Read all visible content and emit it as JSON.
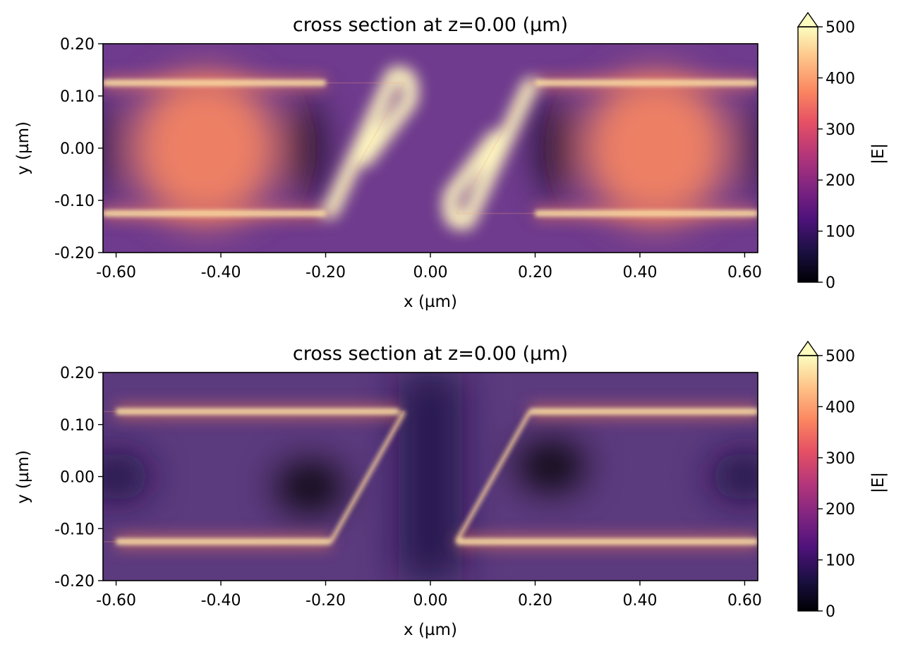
{
  "colormap": {
    "name": "magma",
    "stops": [
      "#000004",
      "#1c1044",
      "#4f127b",
      "#812581",
      "#b5367a",
      "#e55064",
      "#fb8761",
      "#fec287",
      "#fcfdbf"
    ]
  },
  "chart_data": [
    {
      "type": "heatmap",
      "title": "cross section at z=0.00 (µm)",
      "xlabel": "x (µm)",
      "ylabel": "y (µm)",
      "xlim": [
        -0.625,
        0.625
      ],
      "ylim": [
        -0.2,
        0.2
      ],
      "xticks": [
        -0.6,
        -0.4,
        -0.2,
        0.0,
        0.2,
        0.4,
        0.6
      ],
      "xtick_labels": [
        "-0.60",
        "-0.40",
        "-0.20",
        "0.00",
        "0.20",
        "0.40",
        "0.60"
      ],
      "yticks": [
        0.2,
        0.1,
        0.0,
        -0.1,
        -0.2
      ],
      "ytick_labels": [
        "0.20",
        "0.10",
        "0.00",
        "-0.10",
        "-0.20"
      ],
      "colorbar": {
        "label": "|E|",
        "range": [
          0,
          500
        ],
        "ticks": [
          0,
          100,
          200,
          300,
          400,
          500
        ],
        "tick_labels": [
          "0",
          "100",
          "200",
          "300",
          "400",
          "500"
        ],
        "extend": "max"
      },
      "structure": {
        "layer_top_y": 0.125,
        "layer_bottom_y": -0.125,
        "left_block": [
          [
            -0.625,
            0.125
          ],
          [
            -0.05,
            0.125
          ],
          [
            -0.19,
            -0.125
          ],
          [
            -0.625,
            -0.125
          ]
        ],
        "right_block": [
          [
            0.19,
            0.125
          ],
          [
            0.625,
            0.125
          ],
          [
            0.625,
            -0.125
          ],
          [
            0.05,
            -0.125
          ]
        ]
      },
      "field_features": [
        {
          "kind": "hot_band",
          "x": [
            -0.625,
            -0.2
          ],
          "y": 0.125,
          "value": 500
        },
        {
          "kind": "hot_band",
          "x": [
            -0.625,
            -0.2
          ],
          "y": -0.125,
          "value": 500
        },
        {
          "kind": "hot_band",
          "x": [
            0.2,
            0.625
          ],
          "y": 0.125,
          "value": 500
        },
        {
          "kind": "hot_band",
          "x": [
            0.2,
            0.625
          ],
          "y": -0.125,
          "value": 500
        },
        {
          "kind": "hot_lobe",
          "x": [
            -0.14,
            -0.04
          ],
          "y": [
            -0.02,
            0.14
          ],
          "value": 500
        },
        {
          "kind": "hot_lobe",
          "x": [
            0.04,
            0.14
          ],
          "y": [
            -0.14,
            0.02
          ],
          "value": 500
        },
        {
          "kind": "warm_region",
          "x": -0.43,
          "y": 0.0,
          "value": 380
        },
        {
          "kind": "warm_region",
          "x": 0.43,
          "y": 0.0,
          "value": 380
        },
        {
          "kind": "dark_node",
          "x": -0.24,
          "y": 0.0,
          "value": 30
        },
        {
          "kind": "dark_node",
          "x": 0.24,
          "y": 0.0,
          "value": 30
        },
        {
          "kind": "dark_node",
          "x": -0.625,
          "y": 0.0,
          "value": 40
        },
        {
          "kind": "dark_node",
          "x": 0.625,
          "y": 0.0,
          "value": 40
        }
      ]
    },
    {
      "type": "heatmap",
      "title": "cross section at z=0.00 (µm)",
      "xlabel": "x (µm)",
      "ylabel": "y (µm)",
      "xlim": [
        -0.625,
        0.625
      ],
      "ylim": [
        -0.2,
        0.2
      ],
      "xticks": [
        -0.6,
        -0.4,
        -0.2,
        0.0,
        0.2,
        0.4,
        0.6
      ],
      "xtick_labels": [
        "-0.60",
        "-0.40",
        "-0.20",
        "0.00",
        "0.20",
        "0.40",
        "0.60"
      ],
      "yticks": [
        0.2,
        0.1,
        0.0,
        -0.1,
        -0.2
      ],
      "ytick_labels": [
        "0.20",
        "0.10",
        "0.00",
        "-0.10",
        "-0.20"
      ],
      "colorbar": {
        "label": "|E|",
        "range": [
          0,
          500
        ],
        "ticks": [
          0,
          100,
          200,
          300,
          400,
          500
        ],
        "tick_labels": [
          "0",
          "100",
          "200",
          "300",
          "400",
          "500"
        ],
        "extend": "max"
      },
      "structure": {
        "layer_top_y": 0.125,
        "layer_bottom_y": -0.125,
        "left_block": [
          [
            -0.625,
            0.125
          ],
          [
            -0.05,
            0.125
          ],
          [
            -0.19,
            -0.125
          ],
          [
            -0.625,
            -0.125
          ]
        ],
        "right_block": [
          [
            0.19,
            0.125
          ],
          [
            0.625,
            0.125
          ],
          [
            0.625,
            -0.125
          ],
          [
            0.05,
            -0.125
          ]
        ]
      },
      "field_features": [
        {
          "kind": "hot_band",
          "x": [
            -0.6,
            -0.06
          ],
          "y": 0.125,
          "value": 500
        },
        {
          "kind": "hot_band",
          "x": [
            -0.6,
            -0.19
          ],
          "y": -0.125,
          "value": 500
        },
        {
          "kind": "hot_band",
          "x": [
            0.19,
            0.625
          ],
          "y": 0.125,
          "value": 500
        },
        {
          "kind": "hot_band",
          "x": [
            0.05,
            0.625
          ],
          "y": -0.125,
          "value": 500
        },
        {
          "kind": "hot_edge",
          "from": [
            -0.05,
            0.125
          ],
          "to": [
            -0.19,
            -0.125
          ],
          "value": 450
        },
        {
          "kind": "hot_edge",
          "from": [
            0.19,
            0.125
          ],
          "to": [
            0.05,
            -0.125
          ],
          "value": 450
        },
        {
          "kind": "dark_node",
          "x": -0.6,
          "y": 0.0,
          "value": 40
        },
        {
          "kind": "dark_node",
          "x": -0.23,
          "y": -0.02,
          "value": 30
        },
        {
          "kind": "dark_node",
          "x": 0.23,
          "y": 0.02,
          "value": 30
        },
        {
          "kind": "dark_node",
          "x": 0.6,
          "y": 0.0,
          "value": 40
        },
        {
          "kind": "dim_gap",
          "x": [
            -0.06,
            0.06
          ],
          "value": 90
        }
      ]
    }
  ]
}
